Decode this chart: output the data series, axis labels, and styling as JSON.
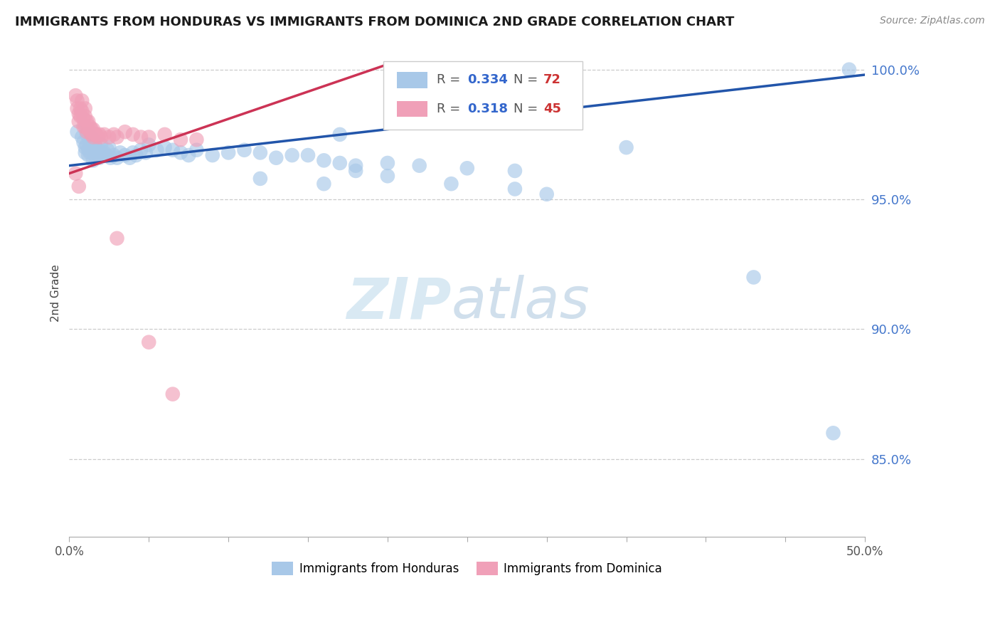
{
  "title": "IMMIGRANTS FROM HONDURAS VS IMMIGRANTS FROM DOMINICA 2ND GRADE CORRELATION CHART",
  "source": "Source: ZipAtlas.com",
  "xlabel_bottom": "Immigrants from Honduras",
  "xlabel_bottom2": "Immigrants from Dominica",
  "ylabel": "2nd Grade",
  "xlim": [
    0.0,
    0.5
  ],
  "ylim": [
    0.82,
    1.008
  ],
  "yticks": [
    0.85,
    0.9,
    0.95,
    1.0
  ],
  "ytick_labels": [
    "85.0%",
    "90.0%",
    "95.0%",
    "100.0%"
  ],
  "color_blue": "#a8c8e8",
  "color_pink": "#f0a0b8",
  "color_line_blue": "#2255aa",
  "color_line_pink": "#cc3355",
  "watermark_zip": "ZIP",
  "watermark_atlas": "atlas",
  "legend_R_blue": "0.334",
  "legend_N_blue": "72",
  "legend_R_pink": "0.318",
  "legend_N_pink": "45",
  "blue_x": [
    0.005,
    0.008,
    0.009,
    0.01,
    0.01,
    0.011,
    0.011,
    0.012,
    0.012,
    0.013,
    0.013,
    0.014,
    0.014,
    0.015,
    0.015,
    0.015,
    0.016,
    0.016,
    0.017,
    0.018,
    0.018,
    0.019,
    0.02,
    0.02,
    0.021,
    0.022,
    0.023,
    0.024,
    0.025,
    0.026,
    0.028,
    0.03,
    0.032,
    0.035,
    0.038,
    0.04,
    0.042,
    0.045,
    0.048,
    0.05,
    0.055,
    0.06,
    0.065,
    0.07,
    0.075,
    0.08,
    0.09,
    0.1,
    0.11,
    0.12,
    0.13,
    0.14,
    0.15,
    0.16,
    0.17,
    0.18,
    0.2,
    0.22,
    0.25,
    0.28,
    0.12,
    0.16,
    0.18,
    0.2,
    0.24,
    0.28,
    0.3,
    0.35,
    0.43,
    0.48,
    0.17,
    0.49
  ],
  "blue_y": [
    0.976,
    0.974,
    0.972,
    0.97,
    0.968,
    0.975,
    0.971,
    0.969,
    0.967,
    0.972,
    0.968,
    0.974,
    0.97,
    0.973,
    0.969,
    0.965,
    0.971,
    0.967,
    0.97,
    0.969,
    0.967,
    0.966,
    0.971,
    0.968,
    0.967,
    0.968,
    0.967,
    0.969,
    0.97,
    0.966,
    0.967,
    0.966,
    0.968,
    0.967,
    0.966,
    0.968,
    0.967,
    0.969,
    0.968,
    0.971,
    0.969,
    0.97,
    0.969,
    0.968,
    0.967,
    0.969,
    0.967,
    0.968,
    0.969,
    0.968,
    0.966,
    0.967,
    0.967,
    0.965,
    0.964,
    0.963,
    0.964,
    0.963,
    0.962,
    0.961,
    0.958,
    0.956,
    0.961,
    0.959,
    0.956,
    0.954,
    0.952,
    0.97,
    0.92,
    0.86,
    0.975,
    1.0
  ],
  "pink_x": [
    0.004,
    0.005,
    0.005,
    0.006,
    0.006,
    0.007,
    0.007,
    0.008,
    0.008,
    0.009,
    0.009,
    0.01,
    0.01,
    0.01,
    0.011,
    0.011,
    0.012,
    0.012,
    0.013,
    0.013,
    0.014,
    0.014,
    0.015,
    0.015,
    0.016,
    0.017,
    0.018,
    0.019,
    0.02,
    0.022,
    0.025,
    0.028,
    0.03,
    0.035,
    0.04,
    0.045,
    0.05,
    0.06,
    0.07,
    0.08,
    0.004,
    0.006,
    0.03,
    0.05,
    0.065
  ],
  "pink_y": [
    0.99,
    0.988,
    0.985,
    0.983,
    0.98,
    0.985,
    0.982,
    0.988,
    0.984,
    0.981,
    0.978,
    0.985,
    0.982,
    0.978,
    0.98,
    0.976,
    0.98,
    0.977,
    0.978,
    0.976,
    0.977,
    0.975,
    0.977,
    0.974,
    0.975,
    0.975,
    0.974,
    0.975,
    0.974,
    0.975,
    0.974,
    0.975,
    0.974,
    0.976,
    0.975,
    0.974,
    0.974,
    0.975,
    0.973,
    0.973,
    0.96,
    0.955,
    0.935,
    0.895,
    0.875
  ],
  "blue_line_x": [
    0.0,
    0.5
  ],
  "blue_line_y": [
    0.963,
    0.998
  ],
  "pink_line_x": [
    0.0,
    0.2
  ],
  "pink_line_y": [
    0.96,
    1.002
  ]
}
